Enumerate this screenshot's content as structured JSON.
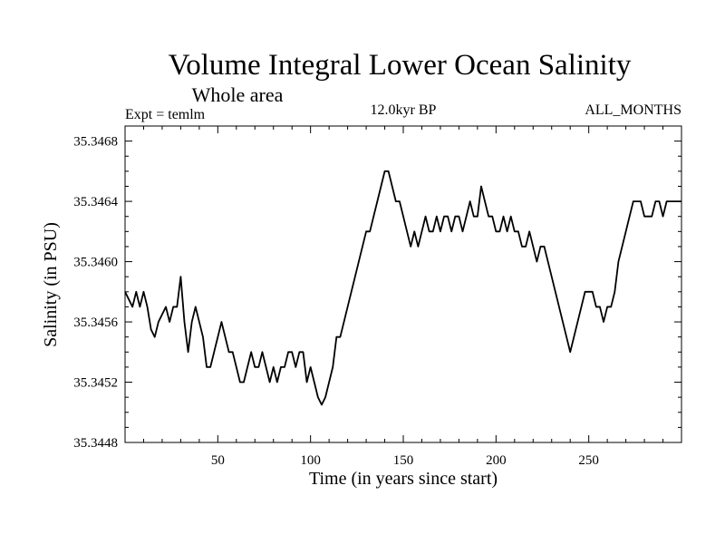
{
  "chart_data": {
    "type": "line",
    "title": "Volume Integral Lower Ocean Salinity",
    "subtitle": "Whole area",
    "left_label": "Expt = temlm",
    "center_label": "12.0kyr BP",
    "right_label": "ALL_MONTHS",
    "xlabel": "Time (in years since start)",
    "ylabel": "Salinity (in PSU)",
    "xlim": [
      0,
      300
    ],
    "ylim": [
      35.3448,
      35.3469
    ],
    "xticks": [
      50,
      100,
      150,
      200,
      250
    ],
    "xtick_labels": [
      "50",
      "100",
      "150",
      "200",
      "250"
    ],
    "yticks": [
      35.3448,
      35.3452,
      35.3456,
      35.346,
      35.3464,
      35.3468
    ],
    "ytick_labels": [
      "35.3448",
      "35.3452",
      "35.3456",
      "35.3460",
      "35.3464",
      "35.3468"
    ],
    "grid": false,
    "series": [
      {
        "name": "Salinity",
        "x": [
          0,
          2,
          4,
          6,
          8,
          10,
          12,
          14,
          16,
          18,
          20,
          22,
          24,
          26,
          28,
          30,
          32,
          34,
          36,
          38,
          40,
          42,
          44,
          46,
          48,
          50,
          52,
          54,
          56,
          58,
          60,
          62,
          64,
          66,
          68,
          70,
          72,
          74,
          76,
          78,
          80,
          82,
          84,
          86,
          88,
          90,
          92,
          94,
          96,
          98,
          100,
          102,
          104,
          106,
          108,
          110,
          112,
          114,
          116,
          118,
          120,
          122,
          124,
          126,
          128,
          130,
          132,
          134,
          136,
          138,
          140,
          142,
          144,
          146,
          148,
          150,
          152,
          154,
          156,
          158,
          160,
          162,
          164,
          166,
          168,
          170,
          172,
          174,
          176,
          178,
          180,
          182,
          184,
          186,
          188,
          190,
          192,
          194,
          196,
          198,
          200,
          202,
          204,
          206,
          208,
          210,
          212,
          214,
          216,
          218,
          220,
          222,
          224,
          226,
          228,
          230,
          232,
          234,
          236,
          238,
          240,
          242,
          244,
          246,
          248,
          250,
          252,
          254,
          256,
          258,
          260,
          262,
          264,
          266,
          268,
          270,
          272,
          274,
          276,
          278,
          280,
          282,
          284,
          286,
          288,
          290,
          292,
          294,
          296,
          298,
          300
        ],
        "values": [
          35.3458,
          35.34575,
          35.3457,
          35.3458,
          35.3457,
          35.3458,
          35.3457,
          35.34555,
          35.3455,
          35.3456,
          35.34565,
          35.3457,
          35.3456,
          35.3457,
          35.3457,
          35.3459,
          35.3456,
          35.3454,
          35.3456,
          35.3457,
          35.3456,
          35.3455,
          35.3453,
          35.3453,
          35.3454,
          35.3455,
          35.3456,
          35.3455,
          35.3454,
          35.3454,
          35.3453,
          35.3452,
          35.3452,
          35.3453,
          35.3454,
          35.3453,
          35.3453,
          35.3454,
          35.3453,
          35.3452,
          35.3453,
          35.3452,
          35.3453,
          35.3453,
          35.3454,
          35.3454,
          35.3453,
          35.3454,
          35.3454,
          35.3452,
          35.3453,
          35.3452,
          35.3451,
          35.34505,
          35.3451,
          35.3452,
          35.3453,
          35.3455,
          35.3455,
          35.3456,
          35.3457,
          35.3458,
          35.3459,
          35.346,
          35.3461,
          35.3462,
          35.3462,
          35.3463,
          35.3464,
          35.3465,
          35.3466,
          35.3466,
          35.3465,
          35.3464,
          35.3464,
          35.3463,
          35.3462,
          35.3461,
          35.3462,
          35.3461,
          35.3462,
          35.3463,
          35.3462,
          35.3462,
          35.3463,
          35.3462,
          35.3463,
          35.3463,
          35.3462,
          35.3463,
          35.3463,
          35.3462,
          35.3463,
          35.3464,
          35.3463,
          35.3463,
          35.3465,
          35.3464,
          35.3463,
          35.3463,
          35.3462,
          35.3462,
          35.3463,
          35.3462,
          35.3463,
          35.3462,
          35.3462,
          35.3461,
          35.3461,
          35.3462,
          35.3461,
          35.346,
          35.3461,
          35.3461,
          35.346,
          35.3459,
          35.3458,
          35.3457,
          35.3456,
          35.3455,
          35.3454,
          35.3455,
          35.3456,
          35.3457,
          35.3458,
          35.3458,
          35.3458,
          35.3457,
          35.3457,
          35.3456,
          35.3457,
          35.3457,
          35.3458,
          35.346,
          35.3461,
          35.3462,
          35.3463,
          35.3464,
          35.3464,
          35.3464,
          35.3463,
          35.3463,
          35.3463,
          35.3464,
          35.3464,
          35.3463,
          35.3464,
          35.3464,
          35.3464,
          35.3464,
          35.3464
        ]
      }
    ]
  }
}
